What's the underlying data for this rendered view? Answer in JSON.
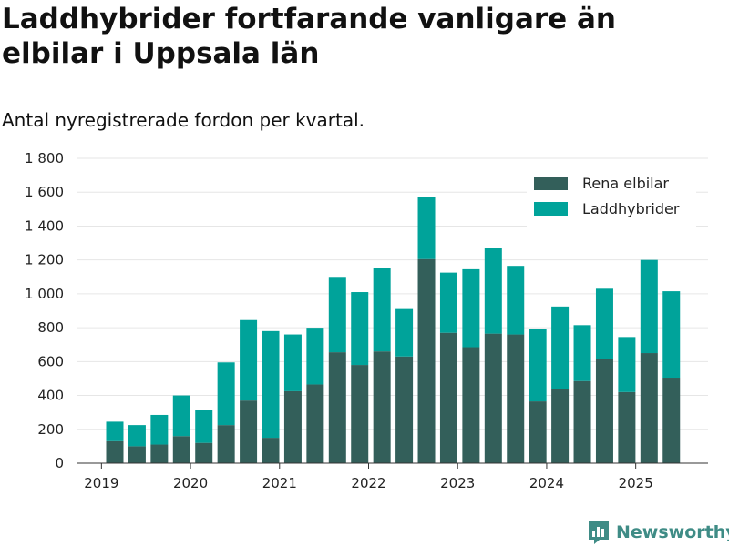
{
  "title": "Laddhybrider fortfarande vanligare än elbilar i Uppsala län",
  "subtitle": "Antal nyregistrerade fordon per kvartal.",
  "brand": {
    "name": "Newsworthy",
    "icon": "newsworthy-logo-icon"
  },
  "colors": {
    "elbilar": "#335f5a",
    "laddhybrider": "#00a39a",
    "grid": "#e6e6e6",
    "axis": "#333333",
    "brand": "#3f8c86"
  },
  "chart_data": {
    "type": "bar",
    "stacked": true,
    "title": "Laddhybrider fortfarande vanligare än elbilar i Uppsala län",
    "subtitle": "Antal nyregistrerade fordon per kvartal.",
    "xlabel": "",
    "ylabel": "",
    "ylim": [
      0,
      1800
    ],
    "yticks": [
      0,
      200,
      400,
      600,
      800,
      1000,
      1200,
      1400,
      1600,
      1800
    ],
    "ytick_labels": [
      "0",
      "200",
      "400",
      "600",
      "800",
      "1 000",
      "1 200",
      "1 400",
      "1 600",
      "1 800"
    ],
    "xticks": [
      {
        "label": "2019",
        "quarter_index": -0.6
      },
      {
        "label": "2020",
        "quarter_index": 3.4
      },
      {
        "label": "2021",
        "quarter_index": 7.4
      },
      {
        "label": "2022",
        "quarter_index": 11.4
      },
      {
        "label": "2023",
        "quarter_index": 15.4
      },
      {
        "label": "2024",
        "quarter_index": 19.4
      },
      {
        "label": "2025",
        "quarter_index": 23.4
      }
    ],
    "categories": [
      "2019 Q2",
      "2019 Q3",
      "2019 Q4",
      "2020 Q1",
      "2020 Q2",
      "2020 Q3",
      "2020 Q4",
      "2021 Q1",
      "2021 Q2",
      "2021 Q3",
      "2021 Q4",
      "2022 Q1",
      "2022 Q2",
      "2022 Q3",
      "2022 Q4",
      "2023 Q1",
      "2023 Q2",
      "2023 Q3",
      "2023 Q4",
      "2024 Q1",
      "2024 Q2",
      "2024 Q3",
      "2024 Q4",
      "2025 Q1",
      "2025 Q2",
      "2025 Q3"
    ],
    "series": [
      {
        "name": "Rena elbilar",
        "key": "elbilar",
        "values": [
          130,
          100,
          110,
          160,
          120,
          225,
          370,
          150,
          425,
          465,
          655,
          580,
          660,
          630,
          1205,
          770,
          685,
          765,
          760,
          365,
          440,
          485,
          615,
          420,
          650,
          505
        ]
      },
      {
        "name": "Laddhybrider",
        "key": "laddhybrider",
        "values": [
          115,
          125,
          175,
          240,
          195,
          370,
          475,
          630,
          335,
          335,
          445,
          430,
          490,
          280,
          365,
          355,
          460,
          505,
          405,
          430,
          485,
          330,
          415,
          325,
          550,
          510
        ]
      }
    ],
    "legend": {
      "position": "top-right",
      "entries": [
        "Rena elbilar",
        "Laddhybrider"
      ]
    }
  }
}
